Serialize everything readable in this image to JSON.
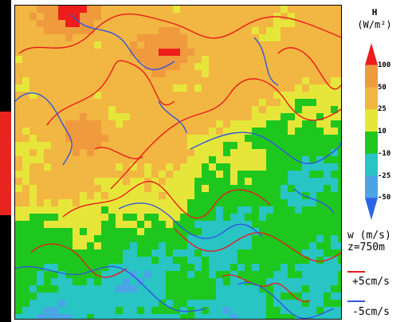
{
  "legend": {
    "title": "H",
    "unit": "(W/m²)"
  },
  "colorbar": {
    "ticks": [
      "100",
      "50",
      "25",
      "10",
      "-10",
      "-25",
      "-50"
    ],
    "bands": [
      {
        "color": "#ee1c1c"
      },
      {
        "color": "#f09a3e"
      },
      {
        "color": "#f2b642"
      },
      {
        "color": "#e6e63a"
      },
      {
        "color": "#1ec71e"
      },
      {
        "color": "#29c4c4"
      },
      {
        "color": "#4aa4e6"
      },
      {
        "color": "#2a64e6"
      }
    ]
  },
  "contour_legend": {
    "variable": "w (m/s)",
    "level": "z=750m",
    "positive": {
      "label": "+5cm/s",
      "color": "#e81c1c"
    },
    "negative": {
      "label": "-5cm/s",
      "color": "#3355dd"
    }
  },
  "chart_data": {
    "type": "heatmap",
    "title": "",
    "field": "H",
    "field_unit": "W/m²",
    "color_levels": [
      -50,
      -25,
      -10,
      10,
      25,
      50,
      100
    ],
    "overlay": {
      "variable": "w",
      "unit": "m/s",
      "height": "z=750m",
      "contours": [
        "+5cm/s",
        "-5cm/s"
      ]
    },
    "regions": [
      {
        "area": "upper half",
        "level": "25-50"
      },
      {
        "area": "upper-left corner",
        "level": ">100"
      },
      {
        "area": "lower-left",
        "level": "-25 to -10"
      },
      {
        "area": "lower-center",
        "level": "-10 to 10"
      },
      {
        "area": "center diagonal band",
        "level": "10-25"
      }
    ]
  }
}
